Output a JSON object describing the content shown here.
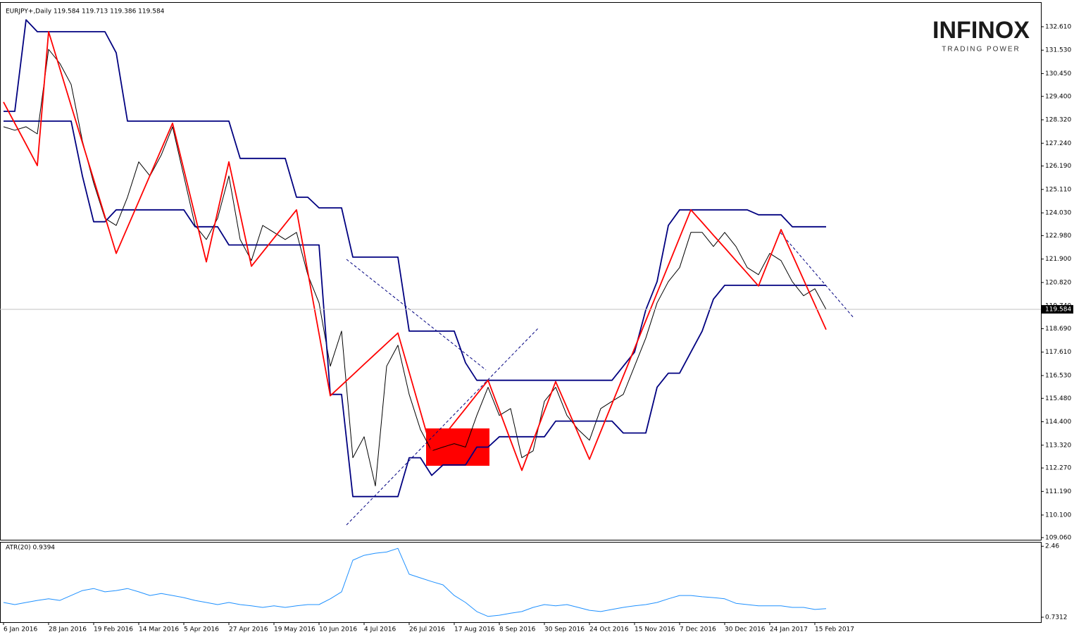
{
  "chart_data": [
    {
      "type": "line",
      "title": "EURJPY+,Daily  119.584 119.713 119.386 119.584",
      "x": [
        "6 Jan 2016",
        null,
        null,
        null,
        "28 Jan 2016",
        null,
        null,
        null,
        "19 Feb 2016",
        null,
        null,
        null,
        "14 Mar 2016",
        null,
        null,
        null,
        "5 Apr 2016",
        null,
        null,
        null,
        "27 Apr 2016",
        null,
        null,
        null,
        "19 May 2016",
        null,
        null,
        null,
        "10 Jun 2016",
        null,
        null,
        null,
        "4 Jul 2016",
        null,
        null,
        null,
        "26 Jul 2016",
        null,
        null,
        null,
        "17 Aug 2016",
        null,
        null,
        null,
        "8 Sep 2016",
        null,
        null,
        null,
        "30 Sep 2016",
        null,
        null,
        null,
        "24 Oct 2016",
        null,
        null,
        null,
        "15 Nov 2016",
        null,
        null,
        null,
        "7 Dec 2016",
        null,
        null,
        null,
        "30 Dec 2016",
        null,
        null,
        null,
        "24 Jan 2017",
        null,
        null,
        null,
        "15 Feb 2017",
        null
      ],
      "series": [
        {
          "color": "#000000",
          "values": [
            128.0,
            127.84,
            128.0,
            127.67,
            131.57,
            130.92,
            129.95,
            127.35,
            125.4,
            123.78,
            123.45,
            124.75,
            126.38,
            125.73,
            126.7,
            128.0,
            125.73,
            123.45,
            122.8,
            123.78,
            125.73,
            122.8,
            121.83,
            123.45,
            123.13,
            122.8,
            123.13,
            121.18,
            119.88,
            116.96,
            118.58,
            112.74,
            113.71,
            111.44,
            116.96,
            117.93,
            115.66,
            114.04,
            113.06,
            113.23,
            113.39,
            113.23,
            114.69,
            115.99,
            114.69,
            115.01,
            112.74,
            113.06,
            115.34,
            115.99,
            114.69,
            114.04,
            113.55,
            115.01,
            115.34,
            115.66,
            116.96,
            118.26,
            119.88,
            120.86,
            121.51,
            123.13,
            123.13,
            122.48,
            123.13,
            122.48,
            121.51,
            121.18,
            122.16,
            121.83,
            120.86,
            120.21,
            120.53,
            119.58
          ]
        },
        {
          "color": "#000080",
          "values": [
            128.71,
            128.71,
            132.93,
            132.38,
            132.38,
            132.38,
            132.38,
            132.38,
            132.38,
            132.38,
            131.41,
            128.26,
            128.26,
            128.26,
            128.26,
            128.26,
            128.26,
            128.26,
            128.26,
            128.26,
            128.26,
            126.54,
            126.54,
            126.54,
            126.54,
            126.54,
            124.75,
            124.75,
            124.26,
            124.26,
            124.26,
            121.99,
            121.99,
            121.99,
            121.99,
            121.99,
            118.58,
            118.58,
            118.58,
            118.58,
            118.58,
            117.12,
            116.31,
            116.31,
            116.31,
            116.31,
            116.31,
            116.31,
            116.31,
            116.31,
            116.31,
            116.31,
            116.31,
            116.31,
            116.31,
            116.96,
            117.61,
            119.56,
            120.86,
            123.45,
            124.17,
            124.17,
            124.17,
            124.17,
            124.17,
            124.17,
            124.17,
            123.94,
            123.94,
            123.94,
            123.39,
            123.39,
            123.39,
            123.39
          ]
        },
        {
          "color": "#000080",
          "values": [
            128.26,
            128.26,
            128.26,
            128.26,
            128.26,
            128.26,
            128.26,
            125.73,
            123.62,
            123.62,
            124.17,
            124.17,
            124.17,
            124.17,
            124.17,
            124.17,
            124.17,
            123.39,
            123.39,
            123.39,
            122.55,
            122.55,
            122.55,
            122.55,
            122.55,
            122.55,
            122.55,
            122.55,
            122.55,
            115.66,
            115.66,
            110.95,
            110.95,
            110.95,
            110.95,
            110.95,
            112.74,
            112.74,
            111.93,
            112.41,
            112.41,
            112.41,
            113.23,
            113.23,
            113.71,
            113.71,
            113.71,
            113.71,
            113.71,
            114.43,
            114.43,
            114.43,
            114.43,
            114.43,
            114.43,
            113.88,
            113.88,
            113.88,
            115.99,
            116.64,
            116.64,
            117.61,
            118.58,
            120.05,
            120.69,
            120.69,
            120.69,
            120.69,
            120.69,
            120.69,
            120.69,
            120.69,
            120.69,
            120.69
          ]
        },
        {
          "color": "#ff0000",
          "values": [
            129.14,
            128.16,
            127.19,
            126.21,
            132.38,
            130.68,
            128.97,
            127.27,
            125.57,
            123.86,
            122.16,
            123.36,
            124.56,
            125.76,
            126.96,
            128.16,
            126.03,
            123.9,
            121.77,
            124.08,
            126.38,
            123.98,
            121.57,
            122.22,
            122.87,
            123.52,
            124.17,
            121.31,
            118.46,
            115.6,
            116.08,
            116.56,
            117.05,
            117.53,
            118.01,
            118.49,
            116.68,
            114.87,
            113.06,
            113.71,
            114.36,
            115.01,
            115.66,
            116.31,
            114.93,
            113.54,
            112.16,
            113.52,
            114.89,
            116.25,
            115.06,
            113.86,
            112.67,
            113.95,
            115.23,
            116.5,
            117.78,
            119.06,
            120.34,
            121.61,
            122.89,
            124.17,
            123.59,
            123.0,
            122.42,
            121.83,
            121.25,
            120.66,
            121.96,
            123.26,
            122.11,
            120.95,
            119.8,
            118.65
          ]
        }
      ],
      "ylim": [
        108.96,
        133.68
      ],
      "yticks": [
        {
          "value": 132.61,
          "label": "132.610"
        },
        {
          "value": 131.53,
          "label": "131.530"
        },
        {
          "value": 130.45,
          "label": "130.450"
        },
        {
          "value": 129.4,
          "label": "129.400"
        },
        {
          "value": 128.32,
          "label": "128.320"
        },
        {
          "value": 127.24,
          "label": "127.240"
        },
        {
          "value": 126.19,
          "label": "126.190"
        },
        {
          "value": 125.11,
          "label": "125.110"
        },
        {
          "value": 124.03,
          "label": "124.030"
        },
        {
          "value": 122.98,
          "label": "122.980"
        },
        {
          "value": 121.9,
          "label": "121.900"
        },
        {
          "value": 120.82,
          "label": "120.820"
        },
        {
          "value": 119.74,
          "label": "119.740"
        },
        {
          "value": 118.69,
          "label": "118.690"
        },
        {
          "value": 117.61,
          "label": "117.610"
        },
        {
          "value": 116.53,
          "label": "116.530"
        },
        {
          "value": 115.48,
          "label": "115.480"
        },
        {
          "value": 114.4,
          "label": "114.400"
        },
        {
          "value": 113.32,
          "label": "113.320"
        },
        {
          "value": 112.27,
          "label": "112.270"
        },
        {
          "value": 111.19,
          "label": "111.190"
        },
        {
          "value": 110.1,
          "label": "110.100"
        },
        {
          "value": 109.06,
          "label": "109.060"
        }
      ],
      "last_price": 119.584
    },
    {
      "type": "line",
      "title": "ATR(20) 0.9394",
      "series": [
        {
          "color": "#1e90ff",
          "values": [
            1.09,
            1.04,
            1.09,
            1.14,
            1.18,
            1.14,
            1.26,
            1.38,
            1.43,
            1.35,
            1.38,
            1.43,
            1.35,
            1.26,
            1.31,
            1.26,
            1.21,
            1.14,
            1.09,
            1.04,
            1.09,
            1.04,
            1.01,
            0.97,
            1.01,
            0.97,
            1.01,
            1.04,
            1.04,
            1.18,
            1.35,
            2.12,
            2.24,
            2.29,
            2.32,
            2.41,
            1.78,
            1.69,
            1.6,
            1.52,
            1.26,
            1.09,
            0.87,
            0.75,
            0.78,
            0.83,
            0.87,
            0.97,
            1.04,
            1.01,
            1.04,
            0.97,
            0.9,
            0.87,
            0.92,
            0.97,
            1.01,
            1.04,
            1.09,
            1.18,
            1.26,
            1.26,
            1.23,
            1.21,
            1.18,
            1.07,
            1.04,
            1.01,
            1.01,
            1.01,
            0.97,
            0.97,
            0.92,
            0.9394
          ]
        }
      ],
      "ylim": [
        0.61,
        2.55
      ],
      "yticks": [
        2.46,
        0.7312
      ]
    }
  ],
  "logo": {
    "name": "INFINOX",
    "tagline": "TRADING POWER"
  }
}
